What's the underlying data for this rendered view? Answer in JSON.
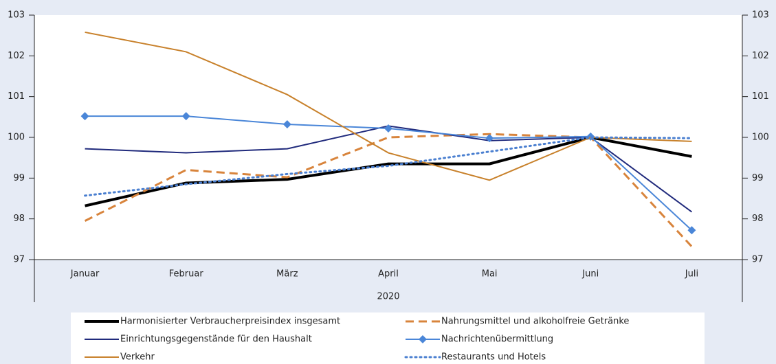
{
  "chart_data": {
    "type": "line",
    "categories": [
      "Januar",
      "Februar",
      "März",
      "April",
      "Mai",
      "Juni",
      "Juli"
    ],
    "x_group_label": "2020",
    "ylim": [
      97,
      103
    ],
    "yticks": [
      97,
      98,
      99,
      100,
      101,
      102,
      103
    ],
    "y2lim": [
      97,
      103
    ],
    "y2ticks": [
      97,
      98,
      99,
      100,
      101,
      102,
      103
    ],
    "grid": false,
    "series": [
      {
        "name": "Harmonisierter Verbraucherpreisindex insgesamt",
        "color": "#000000",
        "dash": "solid",
        "width": 4,
        "marker": "none",
        "values": [
          98.32,
          98.88,
          98.97,
          99.35,
          99.35,
          100,
          99.53
        ]
      },
      {
        "name": "Nahrungsmittel und alkoholfreie Getränke",
        "color": "#d8843c",
        "dash": "dashed",
        "width": 3,
        "marker": "none",
        "values": [
          97.95,
          99.2,
          99.02,
          100,
          100.08,
          100,
          97.32
        ]
      },
      {
        "name": "Einrichtungsgegenstände für den Haushalt",
        "color": "#202a7c",
        "dash": "solid",
        "width": 2,
        "marker": "none",
        "values": [
          99.72,
          99.62,
          99.72,
          100.28,
          99.92,
          100,
          98.17
        ]
      },
      {
        "name": "Nachrichtenübermittlung",
        "color": "#4a86d8",
        "dash": "solid",
        "width": 2,
        "marker": "diamond",
        "values": [
          100.52,
          100.52,
          100.32,
          100.22,
          99.98,
          100.02,
          97.72
        ]
      },
      {
        "name": "Verkehr",
        "color": "#c8812b",
        "dash": "solid",
        "width": 2,
        "marker": "none",
        "values": [
          102.58,
          102.1,
          101.05,
          99.62,
          98.95,
          100,
          99.9
        ]
      },
      {
        "name": "Restaurants und Hotels",
        "color": "#4a7fd0",
        "dash": "dotted",
        "width": 3,
        "marker": "none",
        "values": [
          98.57,
          98.85,
          99.1,
          99.3,
          99.65,
          100,
          99.98
        ]
      }
    ]
  }
}
